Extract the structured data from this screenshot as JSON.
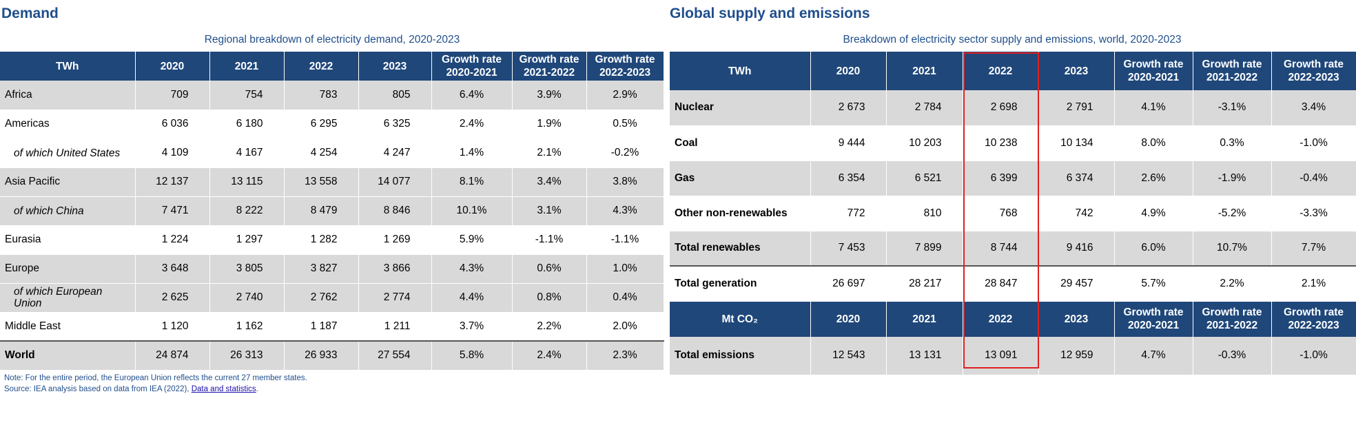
{
  "demand": {
    "title": "Demand",
    "caption": "Regional breakdown of electricity demand, 2020-2023",
    "headers": [
      "TWh",
      "2020",
      "2021",
      "2022",
      "2023",
      "Growth rate 2020-2021",
      "Growth rate 2021-2022",
      "Growth rate 2022-2023"
    ],
    "rows": [
      {
        "label": "Africa",
        "v": [
          "709",
          "754",
          "783",
          "805"
        ],
        "g": [
          "6.4%",
          "3.9%",
          "2.9%"
        ],
        "shade": true,
        "sub": false
      },
      {
        "label": "Americas",
        "v": [
          "6 036",
          "6 180",
          "6 295",
          "6 325"
        ],
        "g": [
          "2.4%",
          "1.9%",
          "0.5%"
        ],
        "shade": false,
        "sub": false
      },
      {
        "label": "of which United States",
        "v": [
          "4 109",
          "4 167",
          "4 254",
          "4 247"
        ],
        "g": [
          "1.4%",
          "2.1%",
          "-0.2%"
        ],
        "shade": false,
        "sub": true
      },
      {
        "label": "Asia Pacific",
        "v": [
          "12 137",
          "13 115",
          "13 558",
          "14 077"
        ],
        "g": [
          "8.1%",
          "3.4%",
          "3.8%"
        ],
        "shade": true,
        "sub": false
      },
      {
        "label": "of which China",
        "v": [
          "7 471",
          "8 222",
          "8 479",
          "8 846"
        ],
        "g": [
          "10.1%",
          "3.1%",
          "4.3%"
        ],
        "shade": true,
        "sub": true
      },
      {
        "label": "Eurasia",
        "v": [
          "1 224",
          "1 297",
          "1 282",
          "1 269"
        ],
        "g": [
          "5.9%",
          "-1.1%",
          "-1.1%"
        ],
        "shade": false,
        "sub": false
      },
      {
        "label": "Europe",
        "v": [
          "3 648",
          "3 805",
          "3 827",
          "3 866"
        ],
        "g": [
          "4.3%",
          "0.6%",
          "1.0%"
        ],
        "shade": true,
        "sub": false
      },
      {
        "label": "of which European Union",
        "v": [
          "2 625",
          "2 740",
          "2 762",
          "2 774"
        ],
        "g": [
          "4.4%",
          "0.8%",
          "0.4%"
        ],
        "shade": true,
        "sub": true
      },
      {
        "label": "Middle East",
        "v": [
          "1 120",
          "1 162",
          "1 187",
          "1 211"
        ],
        "g": [
          "3.7%",
          "2.2%",
          "2.0%"
        ],
        "shade": false,
        "sub": false
      },
      {
        "label": "World",
        "v": [
          "24 874",
          "26 313",
          "26 933",
          "27 554"
        ],
        "g": [
          "5.8%",
          "2.4%",
          "2.3%"
        ],
        "shade": true,
        "sub": false
      }
    ],
    "note": "Note: For the entire period, the European Union reflects the current 27 member states.",
    "source_prefix": "Source: IEA analysis based on data from IEA (2022), ",
    "source_link": "Data and statistics",
    "source_suffix": "."
  },
  "supply": {
    "title": "Global supply and emissions",
    "caption": "Breakdown of electricity sector supply and emissions, world, 2020-2023",
    "headers": [
      "TWh",
      "2020",
      "2021",
      "2022",
      "2023",
      "Growth rate 2020-2021",
      "Growth rate 2021-2022",
      "Growth rate 2022-2023"
    ],
    "rows": [
      {
        "label": "Nuclear",
        "v": [
          "2 673",
          "2 784",
          "2 698",
          "2 791"
        ],
        "g": [
          "4.1%",
          "-3.1%",
          "3.4%"
        ],
        "shade": true
      },
      {
        "label": "Coal",
        "v": [
          "9 444",
          "10 203",
          "10 238",
          "10 134"
        ],
        "g": [
          "8.0%",
          "0.3%",
          "-1.0%"
        ],
        "shade": false
      },
      {
        "label": "Gas",
        "v": [
          "6 354",
          "6 521",
          "6 399",
          "6 374"
        ],
        "g": [
          "2.6%",
          "-1.9%",
          "-0.4%"
        ],
        "shade": true
      },
      {
        "label": "Other non-renewables",
        "v": [
          "772",
          "810",
          "768",
          "742"
        ],
        "g": [
          "4.9%",
          "-5.2%",
          "-3.3%"
        ],
        "shade": false
      },
      {
        "label": "Total renewables",
        "v": [
          "7 453",
          "7 899",
          "8 744",
          "9 416"
        ],
        "g": [
          "6.0%",
          "10.7%",
          "7.7%"
        ],
        "shade": true
      },
      {
        "label": "Total generation",
        "v": [
          "26 697",
          "28 217",
          "28 847",
          "29 457"
        ],
        "g": [
          "5.7%",
          "2.2%",
          "2.1%"
        ],
        "shade": false
      }
    ],
    "headers2": [
      "Mt CO₂",
      "2020",
      "2021",
      "2022",
      "2023",
      "Growth rate 2020-2021",
      "Growth rate 2021-2022",
      "Growth rate 2022-2023"
    ],
    "emissions": {
      "label": "Total emissions",
      "v": [
        "12 543",
        "13 131",
        "13 091",
        "12 959"
      ],
      "g": [
        "4.7%",
        "-0.3%",
        "-1.0%"
      ],
      "shade": true
    }
  },
  "colors": {
    "header_bg": "#1f477a",
    "title": "#1f4e8c",
    "shade": "#d9d9d9",
    "highlight": "#e02020"
  }
}
